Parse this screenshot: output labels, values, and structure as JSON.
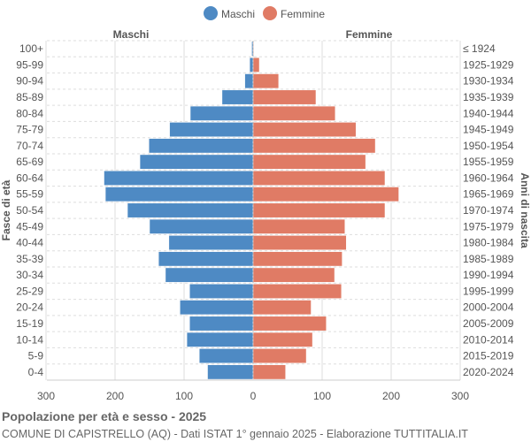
{
  "chart_data": {
    "type": "bar",
    "orientation": "horizontal-pyramid",
    "legend_position": "top",
    "grid": true,
    "xlim": [
      -300,
      300
    ],
    "x_ticks": [
      "300",
      "200",
      "100",
      "0",
      "100",
      "200",
      "300"
    ],
    "left_header": "Maschi",
    "right_header": "Femmine",
    "ylabel_left": "Fasce di età",
    "ylabel_right": "Anni di nascita",
    "categories": [
      "100+",
      "95-99",
      "90-94",
      "85-89",
      "80-84",
      "75-79",
      "70-74",
      "65-69",
      "60-64",
      "55-59",
      "50-54",
      "45-49",
      "40-44",
      "35-39",
      "30-34",
      "25-29",
      "20-24",
      "15-19",
      "10-14",
      "5-9",
      "0-4"
    ],
    "birth_years": [
      "≤ 1924",
      "1925-1929",
      "1930-1934",
      "1935-1939",
      "1940-1944",
      "1945-1949",
      "1950-1954",
      "1955-1959",
      "1960-1964",
      "1965-1969",
      "1970-1974",
      "1975-1979",
      "1980-1984",
      "1985-1989",
      "1990-1994",
      "1995-1999",
      "2000-2004",
      "2005-2009",
      "2010-2014",
      "2015-2019",
      "2020-2024"
    ],
    "series": [
      {
        "name": "Maschi",
        "color": "#4e8ac4",
        "values": [
          2,
          5,
          12,
          45,
          91,
          121,
          151,
          164,
          216,
          214,
          182,
          150,
          122,
          137,
          127,
          92,
          106,
          92,
          96,
          78,
          66
        ]
      },
      {
        "name": "Femmine",
        "color": "#e07b65",
        "values": [
          1,
          9,
          37,
          91,
          119,
          149,
          177,
          163,
          191,
          211,
          191,
          133,
          135,
          129,
          118,
          128,
          84,
          106,
          86,
          77,
          47
        ]
      }
    ]
  },
  "footer": {
    "title": "Popolazione per età e sesso - 2025",
    "subtitle": "COMUNE DI CAPISTRELLO (AQ) - Dati ISTAT 1° gennaio 2025 - Elaborazione TUTTITALIA.IT"
  }
}
